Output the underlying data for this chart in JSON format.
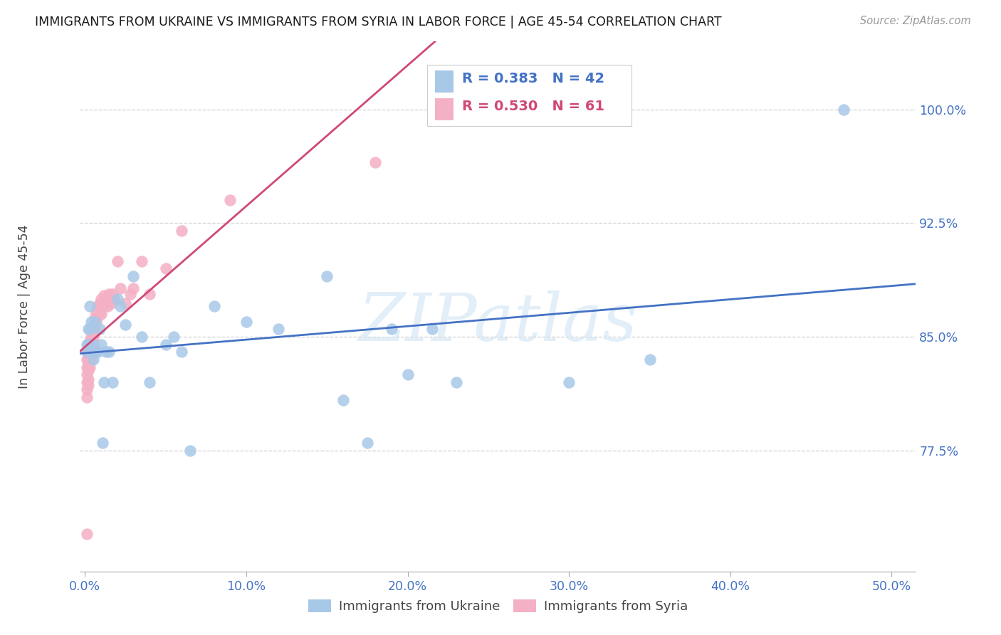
{
  "title": "IMMIGRANTS FROM UKRAINE VS IMMIGRANTS FROM SYRIA IN LABOR FORCE | AGE 45-54 CORRELATION CHART",
  "source": "Source: ZipAtlas.com",
  "xlabel_ticks": [
    "0.0%",
    "10.0%",
    "20.0%",
    "30.0%",
    "40.0%",
    "50.0%"
  ],
  "xlabel_vals": [
    0.0,
    0.1,
    0.2,
    0.3,
    0.4,
    0.5
  ],
  "ylabel_ticks": [
    "100.0%",
    "92.5%",
    "85.0%",
    "77.5%"
  ],
  "ylabel_vals": [
    1.0,
    0.925,
    0.85,
    0.775
  ],
  "ylabel_label": "In Labor Force | Age 45-54",
  "xlim": [
    -0.003,
    0.515
  ],
  "ylim": [
    0.695,
    1.045
  ],
  "ukraine_color": "#a8c8e8",
  "ukraine_color_line": "#4472c4",
  "syria_color": "#f4b0c4",
  "syria_color_line": "#d04878",
  "ukraine_R": 0.383,
  "ukraine_N": 42,
  "syria_R": 0.53,
  "syria_N": 61,
  "ukraine_x": [
    0.001,
    0.001,
    0.002,
    0.002,
    0.003,
    0.003,
    0.004,
    0.005,
    0.005,
    0.006,
    0.007,
    0.008,
    0.009,
    0.01,
    0.011,
    0.012,
    0.013,
    0.015,
    0.017,
    0.02,
    0.022,
    0.025,
    0.03,
    0.035,
    0.04,
    0.05,
    0.055,
    0.06,
    0.065,
    0.08,
    0.1,
    0.12,
    0.15,
    0.16,
    0.175,
    0.19,
    0.2,
    0.215,
    0.23,
    0.3,
    0.35,
    0.47
  ],
  "ukraine_y": [
    0.845,
    0.84,
    0.845,
    0.855,
    0.855,
    0.87,
    0.86,
    0.845,
    0.835,
    0.86,
    0.84,
    0.84,
    0.855,
    0.845,
    0.78,
    0.82,
    0.84,
    0.84,
    0.82,
    0.875,
    0.87,
    0.858,
    0.89,
    0.85,
    0.82,
    0.845,
    0.85,
    0.84,
    0.775,
    0.87,
    0.86,
    0.855,
    0.89,
    0.808,
    0.78,
    0.855,
    0.825,
    0.855,
    0.82,
    0.82,
    0.835,
    1.0
  ],
  "syria_x": [
    0.001,
    0.001,
    0.001,
    0.001,
    0.001,
    0.001,
    0.001,
    0.001,
    0.002,
    0.002,
    0.002,
    0.002,
    0.002,
    0.002,
    0.002,
    0.002,
    0.002,
    0.003,
    0.003,
    0.003,
    0.003,
    0.003,
    0.004,
    0.004,
    0.004,
    0.004,
    0.005,
    0.005,
    0.005,
    0.005,
    0.006,
    0.006,
    0.006,
    0.007,
    0.007,
    0.008,
    0.008,
    0.009,
    0.009,
    0.01,
    0.01,
    0.011,
    0.012,
    0.012,
    0.013,
    0.014,
    0.015,
    0.016,
    0.017,
    0.018,
    0.02,
    0.022,
    0.025,
    0.028,
    0.03,
    0.035,
    0.04,
    0.05,
    0.06,
    0.09,
    0.18
  ],
  "syria_y": [
    0.84,
    0.835,
    0.83,
    0.825,
    0.82,
    0.815,
    0.81,
    0.72,
    0.845,
    0.843,
    0.84,
    0.838,
    0.835,
    0.832,
    0.828,
    0.822,
    0.818,
    0.847,
    0.843,
    0.84,
    0.835,
    0.83,
    0.85,
    0.845,
    0.84,
    0.835,
    0.857,
    0.852,
    0.848,
    0.843,
    0.862,
    0.858,
    0.853,
    0.866,
    0.86,
    0.87,
    0.863,
    0.872,
    0.866,
    0.875,
    0.865,
    0.87,
    0.877,
    0.87,
    0.875,
    0.87,
    0.878,
    0.872,
    0.878,
    0.875,
    0.9,
    0.882,
    0.872,
    0.878,
    0.882,
    0.9,
    0.878,
    0.895,
    0.92,
    0.94,
    0.965
  ],
  "watermark_text": "ZIPatlas",
  "bg_color": "#ffffff",
  "grid_color": "#d0d0d0",
  "legend_ukraine_label": "Immigrants from Ukraine",
  "legend_syria_label": "Immigrants from Syria"
}
